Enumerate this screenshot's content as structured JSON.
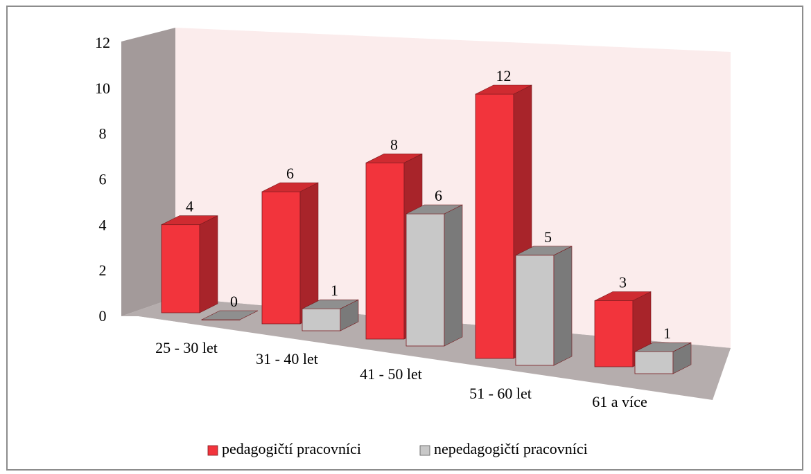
{
  "chart_data": {
    "type": "bar",
    "style": "3d-clustered-column",
    "categories": [
      "25 - 30 let",
      "31 - 40 let",
      "41 - 50 let",
      "51 - 60 let",
      "61 a více"
    ],
    "series": [
      {
        "name": "pedagogičtí pracovníci",
        "values": [
          4,
          6,
          8,
          12,
          3
        ],
        "color": "#f2343c",
        "side_color": "#a8242a",
        "top_color": "#cf2b31"
      },
      {
        "name": "nepedagogičtí pracovníci",
        "values": [
          0,
          1,
          6,
          5,
          1
        ],
        "color": "#c8c8c8",
        "side_color": "#7a7a7a",
        "top_color": "#8f8f8f"
      }
    ],
    "y_ticks": [
      "0",
      "2",
      "4",
      "6",
      "8",
      "10",
      "12"
    ],
    "ylim": [
      0,
      12
    ],
    "legend_position": "bottom",
    "back_wall_color": "#fbecec",
    "side_wall_color": "#a39a9a",
    "floor_color": "#b5adad"
  }
}
